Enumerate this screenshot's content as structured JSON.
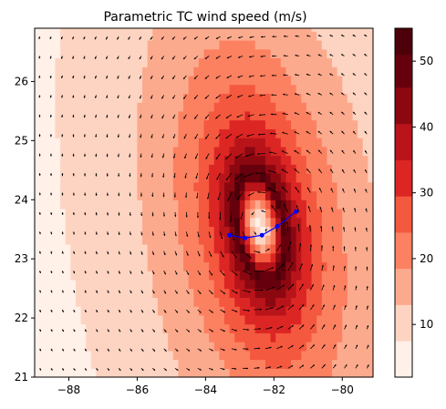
{
  "chart_data": {
    "type": "heatmap",
    "title": "Parametric TC wind speed (m/s)",
    "xlabel": "",
    "ylabel": "",
    "xlim": [
      -89,
      -79.1
    ],
    "ylim": [
      21,
      26.9
    ],
    "x_ticks": [
      -88,
      -86,
      -84,
      -82,
      -80
    ],
    "x_tick_labels": [
      "−88",
      "−86",
      "−84",
      "−82",
      "−80"
    ],
    "y_ticks": [
      21,
      22,
      23,
      24,
      25,
      26
    ],
    "y_tick_labels": [
      "21",
      "22",
      "23",
      "24",
      "25",
      "26"
    ],
    "grid": false,
    "legend": "none",
    "colorbar": {
      "position": "right",
      "levels": [
        2,
        7.5,
        13,
        18.5,
        24,
        29.5,
        35,
        40.5,
        46,
        51,
        55
      ],
      "colors": [
        "#fff0e8",
        "#fdd4c2",
        "#fcaa8d",
        "#fc8161",
        "#f4583e",
        "#dc2624",
        "#b81419",
        "#8c0811",
        "#67000d",
        "#4d0009"
      ],
      "ticks": [
        10,
        20,
        30,
        40,
        50
      ],
      "tick_labels": [
        "10",
        "20",
        "30",
        "40",
        "50"
      ]
    },
    "field": {
      "description_of_model": "Wind speed field of a parametric tropical cyclone; eye near (-82.4, 23.55), maximum about 54 m/s in a ring roughly 0.3–0.7 deg from center",
      "center": [
        -82.4,
        23.55
      ],
      "eye_radius_x": 0.28,
      "eye_radius_y": 0.33,
      "vmax": 54,
      "eye_min": 5,
      "rmax_x": 0.65,
      "rmax_y": 0.95,
      "decay_scale": 3.2,
      "orientation_deg": -25,
      "vectors": "quiver arrows show counter-clockwise circulation around the center"
    },
    "track": {
      "name": "",
      "color": "#0000ff",
      "x": [
        -83.3,
        -82.85,
        -82.35,
        -81.9,
        -81.35
      ],
      "y": [
        23.4,
        23.35,
        23.4,
        23.55,
        23.8
      ]
    }
  }
}
